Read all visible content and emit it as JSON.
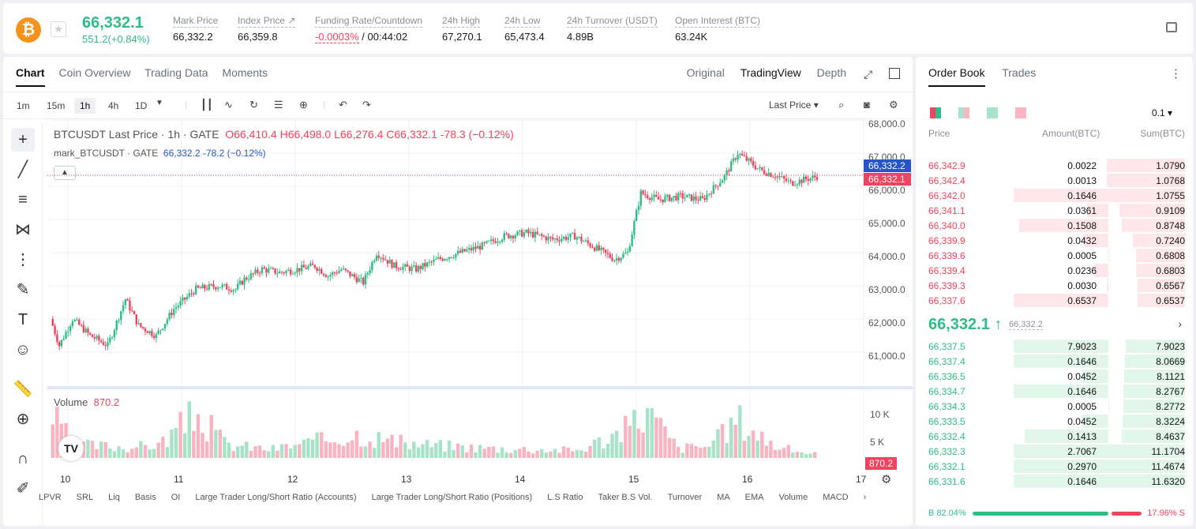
{
  "ticker": {
    "last": "66,332.1",
    "change": "551.2(+0.84%)",
    "coin_glyph": "₿",
    "stats": [
      {
        "label": "Mark Price",
        "value": "66,332.2"
      },
      {
        "label": "Index Price ↗",
        "value": "66,359.8"
      },
      {
        "label": "Funding Rate/Countdown",
        "value_neg": "-0.0003%",
        "value": " / 00:44:02"
      },
      {
        "label": "24h High",
        "value": "67,270.1"
      },
      {
        "label": "24h Low",
        "value": "65,473.4"
      },
      {
        "label": "24h Turnover (USDT)",
        "value": "4.89B"
      },
      {
        "label": "Open Interest (BTC)",
        "value": "63.24K"
      }
    ]
  },
  "chart_tabs": [
    "Chart",
    "Coin Overview",
    "Trading Data",
    "Moments"
  ],
  "views": [
    "Original",
    "TradingView",
    "Depth"
  ],
  "timeframes": [
    "1m",
    "15m",
    "1h",
    "4h",
    "1D"
  ],
  "price_type": "Last Price ▾",
  "legend": {
    "symbol": "BTCUSDT Last Price · 1h · GATE",
    "o": "O66,410.4",
    "h": "H66,498.0",
    "l": "L66,276.4",
    "c": "C66,332.1",
    "chg": "-78.3 (−0.12%)",
    "mark": "mark_BTCUSDT · GATE",
    "mark_val": "66,332.2 -78.2 (−0.12%)"
  },
  "volume_label": "Volume",
  "volume_value": "870.2",
  "chart_data": {
    "type": "candlestick",
    "ylim": [
      60500,
      68200
    ],
    "y_ticks": [
      "68,000.0",
      "67,000.0",
      "66,000.0",
      "65,000.0",
      "64,000.0",
      "63,000.0",
      "62,000.0",
      "61,000.0"
    ],
    "x_ticks": [
      "10",
      "11",
      "12",
      "13",
      "14",
      "15",
      "16",
      "17"
    ],
    "volume_ticks": [
      "10 K",
      "5 K"
    ],
    "mark_price_tag": "66,332.2",
    "last_price_tag": "66,332.1",
    "close_anchors": [
      [
        0,
        62000
      ],
      [
        4,
        61200
      ],
      [
        10,
        62000
      ],
      [
        18,
        61500
      ],
      [
        26,
        61200
      ],
      [
        34,
        62600
      ],
      [
        40,
        61800
      ],
      [
        48,
        61500
      ],
      [
        56,
        62300
      ],
      [
        66,
        62900
      ],
      [
        76,
        63000
      ],
      [
        84,
        62900
      ],
      [
        88,
        63200
      ],
      [
        96,
        63500
      ],
      [
        104,
        63400
      ],
      [
        112,
        63500
      ],
      [
        120,
        63600
      ],
      [
        126,
        63300
      ],
      [
        132,
        63500
      ],
      [
        142,
        63100
      ],
      [
        148,
        64000
      ],
      [
        156,
        63600
      ],
      [
        166,
        63500
      ],
      [
        176,
        63800
      ],
      [
        186,
        64000
      ],
      [
        196,
        64200
      ],
      [
        206,
        64500
      ],
      [
        216,
        64600
      ],
      [
        228,
        64400
      ],
      [
        238,
        64500
      ],
      [
        246,
        64200
      ],
      [
        256,
        63800
      ],
      [
        262,
        64000
      ],
      [
        268,
        65800
      ],
      [
        276,
        65600
      ],
      [
        286,
        65700
      ],
      [
        296,
        65600
      ],
      [
        306,
        66300
      ],
      [
        312,
        67000
      ],
      [
        316,
        66800
      ],
      [
        322,
        66500
      ],
      [
        330,
        66300
      ],
      [
        336,
        66100
      ],
      [
        342,
        66200
      ],
      [
        348,
        66300
      ]
    ],
    "volume_profile": [
      [
        0,
        9000
      ],
      [
        10,
        3000
      ],
      [
        20,
        2500
      ],
      [
        40,
        2300
      ],
      [
        50,
        3000
      ],
      [
        66,
        9000
      ],
      [
        80,
        2800
      ],
      [
        100,
        1800
      ],
      [
        140,
        5000
      ],
      [
        160,
        3000
      ],
      [
        200,
        2000
      ],
      [
        240,
        1600
      ],
      [
        262,
        6000
      ],
      [
        270,
        10000
      ],
      [
        285,
        2000
      ],
      [
        300,
        2600
      ],
      [
        312,
        8000
      ],
      [
        330,
        2200
      ],
      [
        346,
        870
      ]
    ]
  },
  "ob": {
    "tabs": [
      "Order Book",
      "Trades"
    ],
    "precision": "0.1 ▾",
    "headers": [
      "Price",
      "Amount(BTC)",
      "Sum(BTC)"
    ],
    "asks": [
      [
        "66,342.9",
        "0.0022",
        "1.0790"
      ],
      [
        "66,342.4",
        "0.0013",
        "1.0768"
      ],
      [
        "66,342.0",
        "0.1646",
        "1.0755"
      ],
      [
        "66,341.1",
        "0.0361",
        "0.9109"
      ],
      [
        "66,340.0",
        "0.1508",
        "0.8748"
      ],
      [
        "66,339.9",
        "0.0432",
        "0.7240"
      ],
      [
        "66,339.6",
        "0.0005",
        "0.6808"
      ],
      [
        "66,339.4",
        "0.0236",
        "0.6803"
      ],
      [
        "66,339.3",
        "0.0030",
        "0.6567"
      ],
      [
        "66,337.6",
        "0.6537",
        "0.6537"
      ]
    ],
    "mid": "66,332.1 ↑",
    "mid_mark": "66,332.2",
    "bids": [
      [
        "66,337.5",
        "7.9023",
        "7.9023"
      ],
      [
        "66,337.4",
        "0.1646",
        "8.0669"
      ],
      [
        "66,336.5",
        "0.0452",
        "8.1121"
      ],
      [
        "66,334.7",
        "0.1646",
        "8.2767"
      ],
      [
        "66,334.3",
        "0.0005",
        "8.2772"
      ],
      [
        "66,333.5",
        "0.0452",
        "8.3224"
      ],
      [
        "66,332.4",
        "0.1413",
        "8.4637"
      ],
      [
        "66,332.3",
        "2.7067",
        "11.1704"
      ],
      [
        "66,332.1",
        "0.2970",
        "11.4674"
      ],
      [
        "66,331.6",
        "0.1646",
        "11.6320"
      ]
    ],
    "buy": "B 82.04%",
    "sell": "17.96% S",
    "buy_ratio": 0.8204
  },
  "indicators": [
    "LPVR",
    "SRL",
    "Liq",
    "Basis",
    "OI",
    "Large Trader Long/Short Ratio (Accounts)",
    "Large Trader Long/Short Ratio (Positions)",
    "L.S Ratio",
    "Taker B.S Vol.",
    "Turnover",
    "MA",
    "EMA",
    "Volume",
    "MACD"
  ],
  "colors": {
    "up": "#2ebd85",
    "down": "#f0435d",
    "mark": "#2456c9"
  }
}
